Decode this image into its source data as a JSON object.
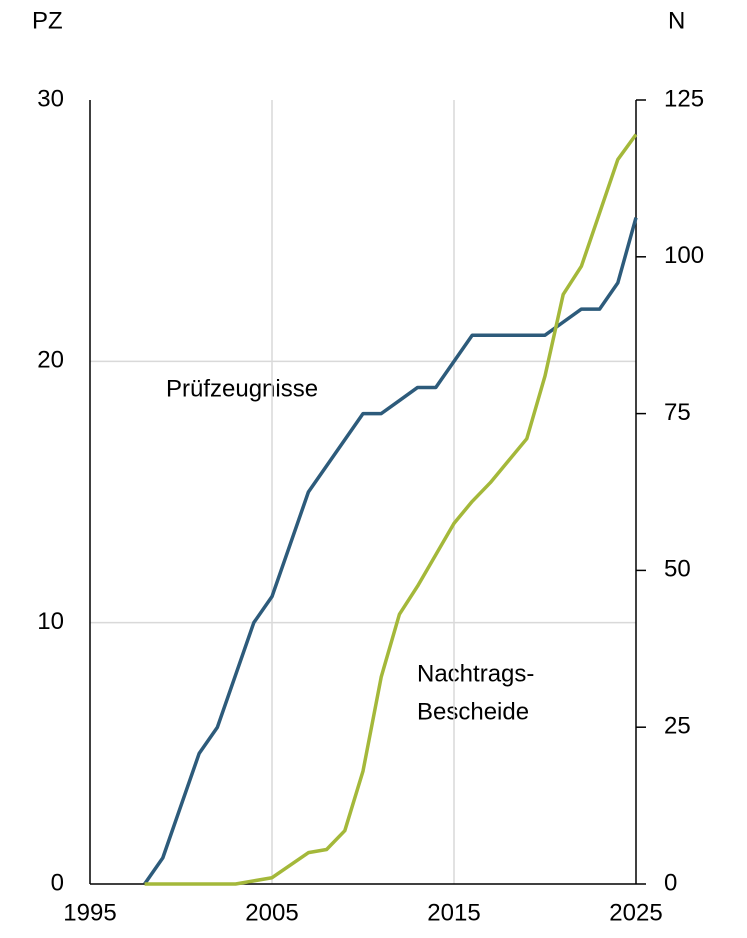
{
  "chart_data": {
    "type": "line",
    "y_label": "PZ",
    "y2_label": "N",
    "annotations": [
      "Prüfzeugnisse",
      "Nachtrags-",
      "Bescheide"
    ],
    "x": [
      1998,
      1999,
      2000,
      2001,
      2002,
      2003,
      2004,
      2005,
      2006,
      2007,
      2008,
      2009,
      2010,
      2011,
      2012,
      2013,
      2014,
      2015,
      2016,
      2017,
      2018,
      2019,
      2020,
      2021,
      2022,
      2023,
      2024,
      2025
    ],
    "series": [
      {
        "name": "Prüfzeugnisse",
        "color": "#2d5b7b",
        "axis": "y",
        "values": [
          0,
          1,
          3,
          5,
          6,
          8,
          10,
          11,
          13,
          15,
          16,
          17,
          18,
          18,
          18.5,
          19,
          19,
          20,
          21,
          21,
          21,
          21,
          21,
          21.5,
          22,
          22,
          23,
          25.5
        ]
      },
      {
        "name": "Nachtrags-Bescheide",
        "color": "#a4b83a",
        "axis": "y2",
        "values": [
          0,
          0,
          0,
          0,
          0,
          0,
          0.5,
          1,
          3,
          5,
          5.5,
          8.5,
          18,
          33,
          43,
          47.5,
          52.5,
          57.5,
          61,
          64,
          67.5,
          71,
          81,
          94,
          98.5,
          107,
          115.5,
          119.5
        ]
      }
    ],
    "xlim": [
      1995,
      2025
    ],
    "xticks": [
      1995,
      2005,
      2015,
      2025
    ],
    "ylim": [
      0,
      30
    ],
    "yticks": [
      0,
      10,
      20,
      30
    ],
    "y2lim": [
      0,
      125
    ],
    "y2ticks": [
      0,
      25,
      50,
      75,
      100,
      125
    ],
    "grid": true
  }
}
